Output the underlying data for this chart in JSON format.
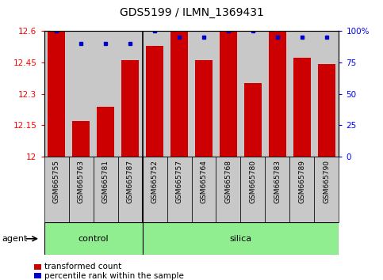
{
  "title": "GDS5199 / ILMN_1369431",
  "samples": [
    "GSM665755",
    "GSM665763",
    "GSM665781",
    "GSM665787",
    "GSM665752",
    "GSM665757",
    "GSM665764",
    "GSM665768",
    "GSM665780",
    "GSM665783",
    "GSM665789",
    "GSM665790"
  ],
  "transformed_count": [
    12.6,
    12.17,
    12.24,
    12.46,
    12.53,
    12.6,
    12.46,
    12.6,
    12.35,
    12.6,
    12.47,
    12.44
  ],
  "percentile_rank": [
    100,
    90,
    90,
    90,
    100,
    95,
    95,
    100,
    100,
    95,
    95,
    95
  ],
  "control_count": 4,
  "group_labels": [
    "control",
    "silica"
  ],
  "group_color": "#90EE90",
  "ylim_left": [
    12.0,
    12.6
  ],
  "ylim_right": [
    0,
    100
  ],
  "yticks_left": [
    12.0,
    12.15,
    12.3,
    12.45,
    12.6
  ],
  "yticks_right": [
    0,
    25,
    50,
    75,
    100
  ],
  "ytick_labels_left": [
    "12",
    "12.15",
    "12.3",
    "12.45",
    "12.6"
  ],
  "ytick_labels_right": [
    "0",
    "25",
    "50",
    "75",
    "100%"
  ],
  "bar_color": "#CC0000",
  "dot_color": "#0000CC",
  "bar_bg_color": "#C8C8C8",
  "agent_label": "agent",
  "legend_items": [
    {
      "color": "#CC0000",
      "label": "transformed count"
    },
    {
      "color": "#0000CC",
      "label": "percentile rank within the sample"
    }
  ],
  "title_fontsize": 10,
  "tick_fontsize": 7.5,
  "sample_fontsize": 6.5,
  "group_fontsize": 8,
  "legend_fontsize": 7.5
}
